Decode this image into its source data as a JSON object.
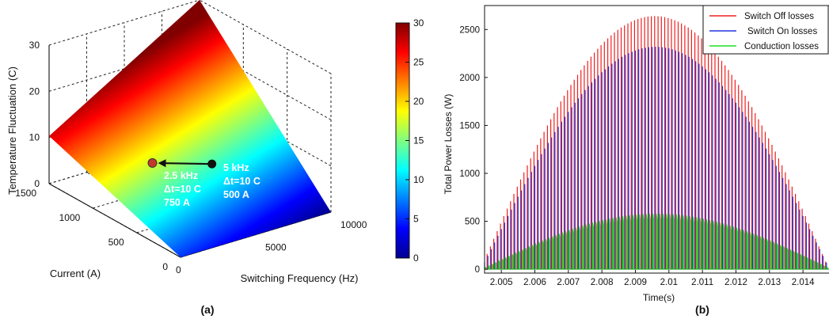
{
  "panels": {
    "a_label": "(a)",
    "b_label": "(b)"
  },
  "chart_data": [
    {
      "panel": "(a)",
      "type": "surface3d",
      "title": "",
      "xlabel": "Switching Frequency (Hz)",
      "ylabel": "Current (A)",
      "zlabel": "Temperature Fluctuation (C)",
      "x_ticks": [
        "5000",
        "10000"
      ],
      "y_ticks": [
        "0",
        "500",
        "1000",
        "1500"
      ],
      "z_ticks": [
        "0",
        "10",
        "20",
        "30"
      ],
      "xlim": [
        0,
        10000
      ],
      "ylim": [
        0,
        1500
      ],
      "zlim": [
        0,
        30
      ],
      "grid": true,
      "colormap": "jet",
      "colorbar": {
        "min": 0,
        "max": 30,
        "ticks": [
          "0",
          "5",
          "10",
          "15",
          "20",
          "25",
          "30"
        ]
      },
      "annotations": {
        "point_a": {
          "lines": [
            "2.5 kHz",
            "Δt=10 C",
            "750 A"
          ],
          "x": 2500,
          "y": 750,
          "z": 10,
          "color": "#c0392b"
        },
        "point_b": {
          "lines": [
            "5 kHz",
            "Δt=10 C",
            "500 A"
          ],
          "x": 5000,
          "y": 500,
          "z": 10,
          "color": "#111111"
        }
      }
    },
    {
      "panel": "(b)",
      "type": "line",
      "title": "",
      "xlabel": "Time(s)",
      "ylabel": "Total Power Losses (W)",
      "xlim": [
        2.0045,
        2.0148
      ],
      "ylim": [
        -40,
        2750
      ],
      "x_ticks": [
        "2.005",
        "2.006",
        "2.007",
        "2.008",
        "2.009",
        "2.01",
        "2.011",
        "2.012",
        "2.013",
        "2.014"
      ],
      "y_ticks": [
        "0",
        "500",
        "1000",
        "1500",
        "2000",
        "2500"
      ],
      "grid": false,
      "legend_position": "top-right",
      "series": [
        {
          "name": "Switch Off losses",
          "color": "#ee2020",
          "envelope": {
            "peak": 2640,
            "t_start": 2.0044,
            "t_peak": 2.0095,
            "t_end": 2.0148,
            "pulse_period": 0.0001
          }
        },
        {
          "name": "Switch On losses",
          "color": "#2233dd",
          "envelope": {
            "peak": 2320,
            "t_start": 2.0044,
            "t_peak": 2.0095,
            "t_end": 2.0148,
            "pulse_period": 0.0001
          }
        },
        {
          "name": "Conduction losses",
          "color": "#22dd22",
          "envelope": {
            "peak": 580,
            "t_start": 2.0044,
            "t_peak": 2.0095,
            "t_end": 2.0148,
            "pulse_period": 0.0001
          }
        }
      ]
    }
  ]
}
